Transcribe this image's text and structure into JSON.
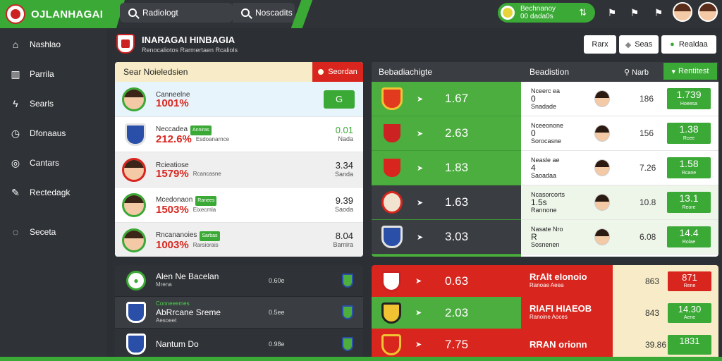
{
  "app": {
    "title": "OJLANHAGAI"
  },
  "search1": {
    "text": "Radiologt"
  },
  "search2": {
    "text": "Noscadits"
  },
  "balance": {
    "line1": "Bechnanoy",
    "line2": "00 dada0s"
  },
  "sidebar": {
    "items": [
      {
        "icon": "home-icon",
        "label": "Nashlao"
      },
      {
        "icon": "chart-icon",
        "label": "Parrila"
      },
      {
        "icon": "tools-icon",
        "label": "Searls"
      },
      {
        "icon": "clock-icon",
        "label": "Dfonaaus"
      },
      {
        "icon": "target-icon",
        "label": "Cantars"
      },
      {
        "icon": "edit-icon",
        "label": "Rectedagk"
      },
      {
        "icon": "chat-icon",
        "label": "Seceta"
      }
    ]
  },
  "page": {
    "title": "INARAGAI HINBAGIA",
    "subtitle": "Renocaliotos Rarmertaen Rcaliols"
  },
  "header_buttons": [
    {
      "label": "Rarx"
    },
    {
      "label": "Seas"
    },
    {
      "label": "Realdaa"
    }
  ],
  "left_panel": {
    "header": "Sear Noieledsien",
    "header_button": "Seordan",
    "rows": [
      {
        "name": "Canneelne",
        "pct": "1001%",
        "tag": "",
        "right_value": "",
        "right_sub": "",
        "button": "G"
      },
      {
        "name": "Neccadea",
        "pct": "212.6%",
        "tag": "Anniras",
        "sub": "Esdoanarnce",
        "right_value": "0.01",
        "right_sub": "Nada"
      },
      {
        "name": "Rcieatiose",
        "pct": "1579%",
        "tag": "",
        "sub": "Rcancasne",
        "right_value": "3.34",
        "right_sub": "Sanda"
      },
      {
        "name": "Mcedonaon",
        "pct": "1503%",
        "tag": "Ranees",
        "sub": "Eixecmla",
        "right_value": "9.39",
        "right_sub": "Saoda"
      },
      {
        "name": "Rncananoies",
        "pct": "1003%",
        "tag": "Sarbas",
        "sub": "Rarsiorais",
        "right_value": "8.04",
        "right_sub": "Bamira"
      }
    ]
  },
  "mid_panel": {
    "header": "Bebadiachigte",
    "rows": [
      {
        "value": "1.67"
      },
      {
        "value": "2.63"
      },
      {
        "value": "1.83"
      },
      {
        "value": "1.63"
      },
      {
        "value": "3.03"
      }
    ]
  },
  "right_panel": {
    "header": "Beadistion",
    "find": "Narb",
    "filter": "Rentitest",
    "rows": [
      {
        "l1": "Nceerc ea",
        "l2": "0",
        "l3": "Snadade",
        "num": "186",
        "odds": "1.739",
        "odds_sub": "Hoeesa"
      },
      {
        "l1": "Nceeonone",
        "l2": "0",
        "l3": "Sorocasne",
        "num": "156",
        "odds": "1.38",
        "odds_sub": "Rcee"
      },
      {
        "l1": "Neasle ae",
        "l2": "4",
        "l3": "Saoadaa",
        "num": "7.26",
        "odds": "1.58",
        "odds_sub": "Rcane"
      },
      {
        "l1": "Ncasorcorts",
        "l2": "1.5s",
        "l3": "Rannone",
        "num": "10.8",
        "odds": "13.1",
        "odds_sub": "Reore"
      },
      {
        "l1": "Nasate Nro",
        "l2": "R",
        "l3": "Sosnenen",
        "num": "6.08",
        "odds": "14.4",
        "odds_sub": "Rolae"
      }
    ]
  },
  "bottom_left": {
    "rows": [
      {
        "title": "Alen Ne Bacelan",
        "sub": "Mrena",
        "tag": "",
        "mid": "0.60e"
      },
      {
        "title": "AbRrcane Sreme",
        "sub": "Aesoeet",
        "tag": "Conneeemes",
        "mid": "0.5ee"
      },
      {
        "title": "Nantum Do",
        "sub": "",
        "tag": "",
        "mid": "0.98e"
      }
    ]
  },
  "bottom_right": {
    "rows": [
      {
        "value": "0.63",
        "title": "RrAlt eIonoio",
        "sub": "Ranoae Aeea",
        "num": "863",
        "odds": "871",
        "odds_sub": "Rene"
      },
      {
        "value": "2.03",
        "title": "RIAFI HIAEOB",
        "sub": "Ranoine Aoces",
        "num": "843",
        "odds": "14.30",
        "odds_sub": "Aene"
      },
      {
        "value": "7.75",
        "title": "RRAN orionn",
        "sub": "",
        "num": "39.86",
        "odds": "1831",
        "odds_sub": ""
      }
    ]
  },
  "colors": {
    "accent": "#3aa935",
    "danger": "#d8261e",
    "dark": "#2f3236",
    "cream": "#f7ecc7"
  }
}
